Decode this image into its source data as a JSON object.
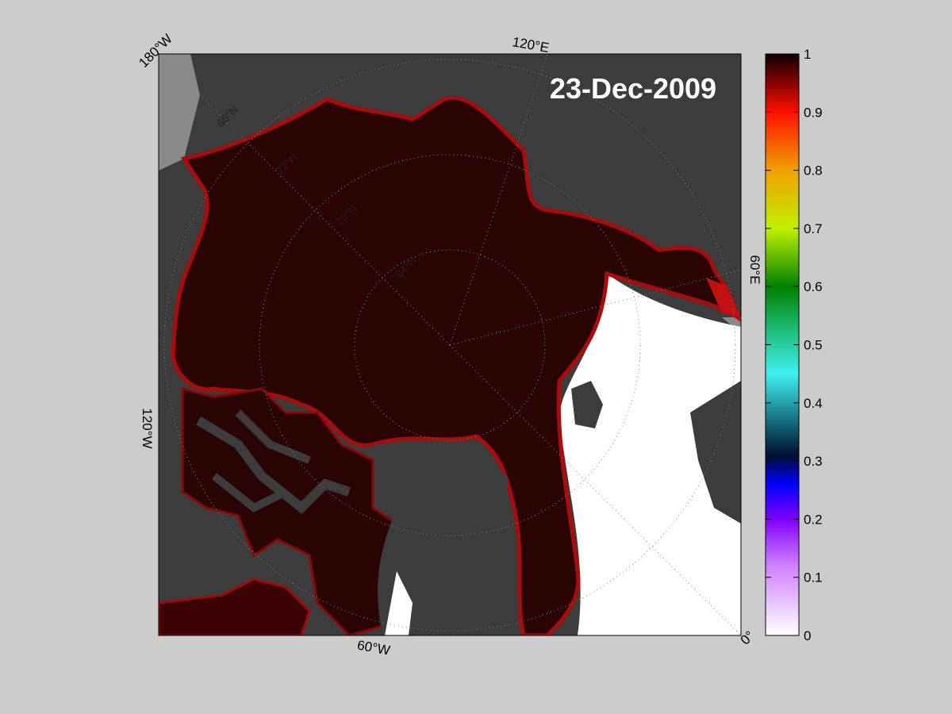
{
  "title": "23-Dec-2009",
  "map": {
    "longitude_labels": [
      "180°W",
      "120°E",
      "60°E",
      "0°",
      "60°W",
      "120°W"
    ],
    "latitude_labels": [
      "66°N",
      "72°N",
      "78°N",
      "84°N"
    ]
  },
  "colorbar": {
    "lim": [
      0,
      1
    ],
    "ticks": [
      0,
      0.1,
      0.2,
      0.3,
      0.4,
      0.5,
      0.6,
      0.7,
      0.8,
      0.9,
      1
    ]
  }
}
